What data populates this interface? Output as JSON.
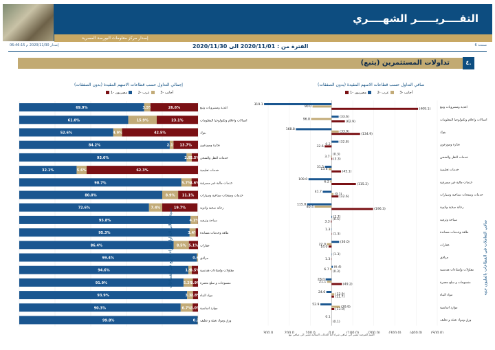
{
  "header": {
    "title": "التقــــريـــــر الشهــــري",
    "subtitle": "إصدار مركز معلومات البورصة المصرية",
    "page": "صفحة 6",
    "issued": "إصدار 2020/11/30 م 06:46:15",
    "period": "الفترة من : 2020/11/01 الى 2020/11/30"
  },
  "section": {
    "number": "٤.",
    "title": "تداولات المستثمرين  (يتبع)"
  },
  "left_panel": {
    "title": "إجمالي التداول حسب قطاعات الاسهم المقيدة (بدون الصفقات)",
    "vertical_title": "نسبة إجمالي التداول شراء + بيع في القطاعات",
    "legend": [
      "مصريون -1",
      "عرب -2",
      "أجانب -3"
    ]
  },
  "right_panel": {
    "title": "صافي التداول حسب قطاعات الاسهم المقيدة (بدون الصفقات)",
    "vertical_title": "صافي التعاملات في القطاعات بالمليون جنيه",
    "legend": [
      "مصريون -1",
      "عرب -2",
      "أجانب -3"
    ],
    "footnote": "القيم الموجبة تشير الي صافي شراء اما الخانات السالبة تشير الي صافي بيع"
  },
  "colors": {
    "egyptians": "#1a5690",
    "arabs": "#c2ab78",
    "foreigners": "#7a1014",
    "navy": "#0d4d80",
    "gold": "#c2aa72"
  },
  "chart_data": [
    {
      "type": "bar",
      "orientation": "horizontal-stacked-percent",
      "title": "إجمالي التداول حسب قطاعات الاسهم المقيدة (بدون الصفقات)",
      "xlim": [
        0,
        100
      ],
      "x_ticks": [
        "0%",
        "20%",
        "40%",
        "60%",
        "80%",
        "100%"
      ],
      "categories": [
        "اغذية ومشروبات وتبغ",
        "اتصالات واعلام وتكنولوجيا المعلومات",
        "بنوك",
        "تجارة وموزعون",
        "خدمات النقل والشحن",
        "خدمات تعليمية",
        "خدمات مالية غير مصرفية",
        "خدمات ومنتجات صناعية وسيارات",
        "رعاية صحية وادوية",
        "سياحة وترفيه",
        "طاقة وخدمات مساندة",
        "عقارات",
        "مرافق",
        "مقاولات وإنشاءات هندسية",
        "منسوجات و سلع معمرة",
        "مواد البناء",
        "موارد اساسية",
        "ورق ومواد تعبئة و تغليف"
      ],
      "series": [
        {
          "name": "مصريون -1",
          "values": [
            69.9,
            61.0,
            52.6,
            84.2,
            93.6,
            32.1,
            90.7,
            80.0,
            72.6,
            95.8,
            95.3,
            86.4,
            99.4,
            94.6,
            91.9,
            93.9,
            90.3,
            99.8
          ]
        },
        {
          "name": "عرب -2",
          "values": [
            3.5,
            15.9,
            4.9,
            2.1,
            2.9,
            5.6,
            5.7,
            8.9,
            7.4,
            4.1,
            3.4,
            8.5,
            0.6,
            1.9,
            5.2,
            3.3,
            6.7,
            0.2
          ]
        },
        {
          "name": "أجانب -3",
          "values": [
            26.6,
            23.1,
            42.5,
            13.7,
            3.5,
            62.3,
            3.6,
            11.1,
            19.7,
            0.1,
            1.3,
            5.1,
            0.0,
            3.5,
            2.9,
            2.8,
            3.0,
            0.0
          ]
        }
      ],
      "data_labels": [
        [
          "69.9%",
          "3.5%",
          "26.6%"
        ],
        [
          "61.0%",
          "15.9%",
          "23.1%"
        ],
        [
          "52.6%",
          "4.9%",
          "42.5%"
        ],
        [
          "84.2%",
          "2.1%",
          "13.7%"
        ],
        [
          "93.6%",
          "2.9%",
          "3.5%"
        ],
        [
          "32.1%",
          "5.6%",
          "62.3%"
        ],
        [
          "90.7%",
          "5.7%",
          "3.6%"
        ],
        [
          "80.0%",
          "8.9%",
          "11.1%"
        ],
        [
          "72.6%",
          "7.4%",
          "19.7%"
        ],
        [
          "95.8%",
          "4.1%",
          ""
        ],
        [
          "95.3%",
          "3.4%",
          ""
        ],
        [
          "86.4%",
          "8.5%",
          "5.1%"
        ],
        [
          "99.4%",
          "0.6%",
          ""
        ],
        [
          "94.6%",
          "1.9%",
          "3.5%"
        ],
        [
          "91.9%",
          "5.2%",
          "2.9%"
        ],
        [
          "93.9%",
          "3.3%",
          "2.8%"
        ],
        [
          "90.3%",
          "6.7%",
          "3.0%"
        ],
        [
          "99.8%",
          "0.2%",
          ""
        ]
      ]
    },
    {
      "type": "bar",
      "orientation": "horizontal-grouped",
      "title": "صافي التداول حسب قطاعات الاسهم المقيدة (بدون الصفقات)",
      "xlim": [
        -500,
        300
      ],
      "x_axis_reversed": true,
      "x_ticks": [
        "300.0",
        "200.0",
        "100.0",
        "0.0",
        "(100.0)",
        "(200.0)",
        "(300.0)",
        "(400.0)",
        "(500.0)"
      ],
      "categories": [
        "اغذية ومشروبات وتبغ",
        "اتصالات واعلام وتكنولوجيا المعلومات",
        "بنوك",
        "تجارة وموزعون",
        "خدمات النقل والشحن",
        "خدمات تعليمية",
        "خدمات مالية غير مصرفية",
        "خدمات ومنتجات صناعية وسيارات",
        "رعاية صحية وادوية",
        "سياحة وترفيه",
        "طاقة وخدمات مساندة",
        "عقارات",
        "مرافق",
        "مقاولات وإنشاءات هندسية",
        "منسوجات و سلع معمرة",
        "مواد البناء",
        "موارد اساسية",
        "ورق ومواد تعبئة و تغليف"
      ],
      "series": [
        {
          "name": "مصريون -1",
          "values": [
            319.1,
            -33.6,
            168.8,
            -32.8,
            -0.3,
            31.5,
            109.0,
            41.7,
            115.8,
            -2.7,
            1.3,
            -36.0,
            -1.3,
            -6.4,
            28.0,
            24.6,
            52.9,
            0.1
          ]
        },
        {
          "name": "عرب -2",
          "values": [
            90.0,
            96.8,
            -33.9,
            0.2,
            3.7,
            13.6,
            6.2,
            -9.1,
            80.4,
            -0.5,
            0.0,
            22.0,
            0.0,
            6.7,
            21.1,
            -12.9,
            -39.9,
            0.0
          ]
        },
        {
          "name": "أجانب -3",
          "values": [
            -409.1,
            -62.9,
            -134.9,
            32.6,
            -3.3,
            -45.1,
            -115.2,
            -32.6,
            -196.3,
            3.3,
            -1.3,
            14.0,
            1.3,
            -0.3,
            -49.2,
            -11.7,
            -13.0,
            -0.1
          ]
        }
      ],
      "data_labels": [
        [
          "319.1",
          "90.0",
          "(409.1)"
        ],
        [
          "(33.6)",
          "96.8",
          "(62.9)"
        ],
        [
          "168.8",
          "(33.9)",
          "(134.9)"
        ],
        [
          "(32.8)",
          "0.2",
          "32.6"
        ],
        [
          "(0.3)",
          "3.7",
          "(3.3)"
        ],
        [
          "31.5",
          "13.6",
          "(45.1)"
        ],
        [
          "109.0",
          "6.2",
          "(115.2)"
        ],
        [
          "41.7",
          "(9.1)",
          "(32.6)"
        ],
        [
          "115.8",
          "80.4",
          "(196.3)"
        ],
        [
          "(2.7)",
          "(0.5)",
          "3.3"
        ],
        [
          "1.3",
          "",
          "(1.3)"
        ],
        [
          "(36.0)",
          "22.0",
          "14.0"
        ],
        [
          "(1.3)",
          "",
          "1.3"
        ],
        [
          "(6.4)",
          "6.7",
          "(0.3)"
        ],
        [
          "28.0",
          "21.1",
          "(49.2)"
        ],
        [
          "24.6",
          "(12.9)",
          "(11.7)"
        ],
        [
          "52.9",
          "(39.9)",
          "(13.0)"
        ],
        [
          "0.1",
          "",
          "(0.1)"
        ]
      ]
    }
  ]
}
